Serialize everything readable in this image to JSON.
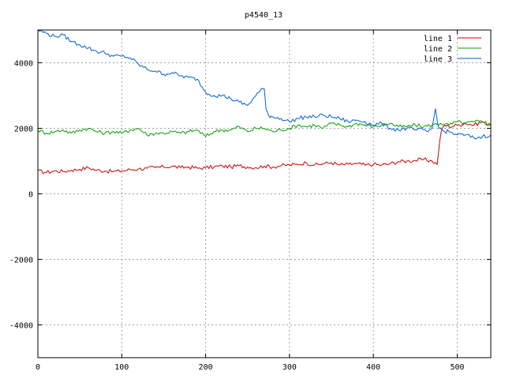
{
  "chart_data": {
    "type": "line",
    "title": "p4540_13",
    "xlabel": "",
    "ylabel": "",
    "xlim": [
      0,
      540
    ],
    "ylim": [
      -5000,
      5000
    ],
    "x_ticks": [
      0,
      100,
      200,
      300,
      400,
      500
    ],
    "y_ticks": [
      -4000,
      -2000,
      0,
      2000,
      4000
    ],
    "grid": true,
    "legend_position": "top-right",
    "series": [
      {
        "name": "line 1",
        "color": "#cc0000",
        "x": [
          0,
          10,
          20,
          30,
          40,
          50,
          60,
          70,
          80,
          90,
          100,
          110,
          120,
          130,
          140,
          150,
          160,
          170,
          180,
          190,
          200,
          210,
          220,
          230,
          240,
          250,
          260,
          270,
          280,
          290,
          300,
          310,
          320,
          330,
          340,
          350,
          360,
          370,
          380,
          390,
          400,
          410,
          420,
          430,
          440,
          450,
          460,
          470,
          476,
          479,
          482,
          485,
          490,
          500,
          510,
          520,
          530,
          540
        ],
        "y": [
          700,
          650,
          700,
          680,
          720,
          750,
          800,
          720,
          700,
          680,
          700,
          740,
          760,
          780,
          800,
          820,
          840,
          800,
          820,
          780,
          800,
          820,
          850,
          820,
          860,
          820,
          800,
          850,
          820,
          860,
          880,
          900,
          950,
          880,
          920,
          950,
          880,
          900,
          920,
          880,
          900,
          880,
          920,
          980,
          1000,
          1020,
          1050,
          1000,
          900,
          1600,
          2000,
          2100,
          2050,
          2100,
          2150,
          2100,
          2200,
          2100
        ]
      },
      {
        "name": "line 2",
        "color": "#00a000",
        "x": [
          0,
          10,
          20,
          30,
          40,
          50,
          60,
          70,
          80,
          90,
          100,
          110,
          120,
          130,
          140,
          150,
          160,
          170,
          180,
          190,
          200,
          210,
          220,
          230,
          240,
          250,
          260,
          270,
          280,
          290,
          300,
          310,
          320,
          330,
          340,
          350,
          360,
          370,
          380,
          390,
          400,
          410,
          420,
          430,
          440,
          450,
          460,
          470,
          480,
          490,
          500,
          510,
          520,
          530,
          540
        ],
        "y": [
          1950,
          1850,
          1900,
          1950,
          1850,
          1950,
          2000,
          1900,
          1850,
          1900,
          1850,
          1950,
          2000,
          1800,
          1850,
          1850,
          1900,
          1850,
          1900,
          1950,
          1750,
          1900,
          1950,
          1950,
          2050,
          1900,
          2000,
          2000,
          1900,
          1950,
          2000,
          2100,
          2050,
          2100,
          2000,
          2150,
          2100,
          2050,
          2150,
          2100,
          2050,
          2100,
          2150,
          2050,
          2050,
          2100,
          2050,
          2100,
          2150,
          2100,
          2200,
          2150,
          2200,
          2200,
          2100
        ]
      },
      {
        "name": "line 3",
        "color": "#0060d0",
        "x": [
          0,
          10,
          20,
          30,
          40,
          50,
          60,
          70,
          80,
          90,
          100,
          110,
          120,
          130,
          140,
          150,
          160,
          170,
          180,
          190,
          200,
          210,
          220,
          230,
          240,
          250,
          260,
          265,
          270,
          272,
          275,
          280,
          290,
          300,
          310,
          320,
          330,
          340,
          350,
          360,
          370,
          380,
          390,
          400,
          410,
          420,
          430,
          440,
          450,
          460,
          465,
          470,
          474,
          478,
          485,
          490,
          500,
          510,
          520,
          530,
          540
        ],
        "y": [
          5000,
          4900,
          4800,
          4850,
          4650,
          4550,
          4450,
          4350,
          4300,
          4200,
          4200,
          4150,
          3950,
          3800,
          3750,
          3650,
          3700,
          3600,
          3550,
          3500,
          3100,
          3000,
          3000,
          2900,
          2800,
          2700,
          3000,
          3150,
          3200,
          2600,
          2400,
          2350,
          2300,
          2200,
          2300,
          2350,
          2350,
          2400,
          2350,
          2300,
          2200,
          2250,
          2200,
          2100,
          2150,
          2000,
          1950,
          2000,
          1950,
          1950,
          1900,
          2000,
          2600,
          2000,
          1900,
          1900,
          1800,
          1800,
          1700,
          1750,
          1800
        ]
      }
    ]
  }
}
